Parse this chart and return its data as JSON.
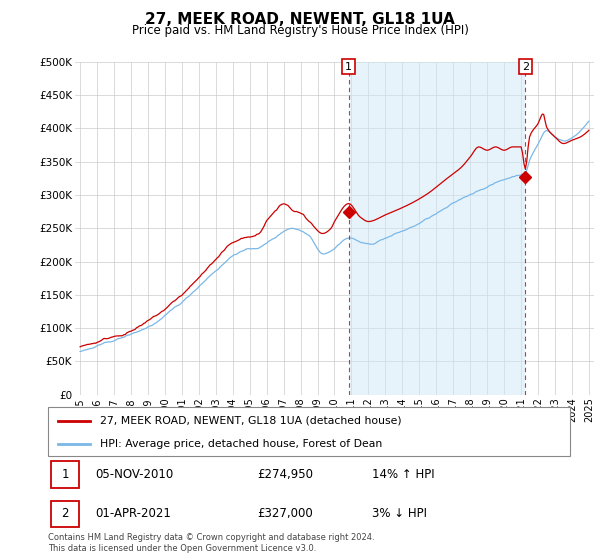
{
  "title": "27, MEEK ROAD, NEWENT, GL18 1UA",
  "subtitle": "Price paid vs. HM Land Registry's House Price Index (HPI)",
  "legend_line1": "27, MEEK ROAD, NEWENT, GL18 1UA (detached house)",
  "legend_line2": "HPI: Average price, detached house, Forest of Dean",
  "annotation1_date": "05-NOV-2010",
  "annotation1_price": "£274,950",
  "annotation1_hpi": "14% ↑ HPI",
  "annotation2_date": "01-APR-2021",
  "annotation2_price": "£327,000",
  "annotation2_hpi": "3% ↓ HPI",
  "footer": "Contains HM Land Registry data © Crown copyright and database right 2024.\nThis data is licensed under the Open Government Licence v3.0.",
  "hpi_color": "#7ab8e8",
  "price_color": "#cc0000",
  "fill_color": "#d0e8f8",
  "ylim_min": 0,
  "ylim_max": 500000,
  "yticks": [
    0,
    50000,
    100000,
    150000,
    200000,
    250000,
    300000,
    350000,
    400000,
    450000,
    500000
  ],
  "ytick_labels": [
    "£0",
    "£50K",
    "£100K",
    "£150K",
    "£200K",
    "£250K",
    "£300K",
    "£350K",
    "£400K",
    "£450K",
    "£500K"
  ],
  "xmin_year": 1995,
  "xmax_year": 2025,
  "xtick_years": [
    1995,
    1996,
    1997,
    1998,
    1999,
    2000,
    2001,
    2002,
    2003,
    2004,
    2005,
    2006,
    2007,
    2008,
    2009,
    2010,
    2011,
    2012,
    2013,
    2014,
    2015,
    2016,
    2017,
    2018,
    2019,
    2020,
    2021,
    2022,
    2023,
    2024,
    2025
  ],
  "purchase1_x": 2010.84,
  "purchase1_y": 274950,
  "purchase2_x": 2021.25,
  "purchase2_y": 327000
}
